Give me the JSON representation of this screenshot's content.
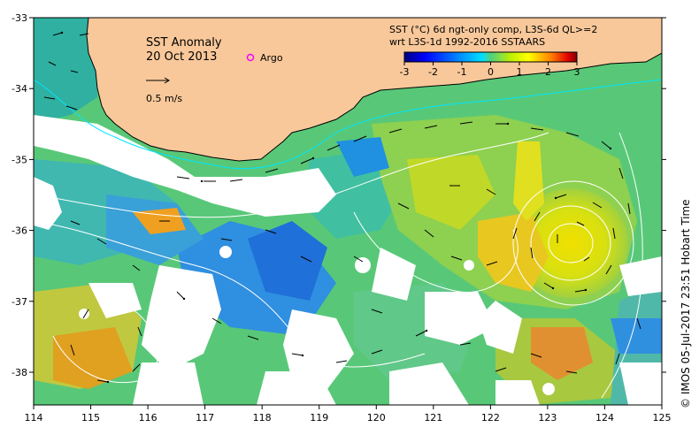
{
  "title": "SST Anomaly",
  "date": "20 Oct 2013",
  "argo_label": "Argo",
  "scale_label": "0.5 m/s",
  "legend": {
    "line1": "SST (°C) 6d ngt-only comp, L3S-6d QL>=2",
    "line2": "wrt L3S-1d 1992-2016 SSTAARS",
    "ticks": [
      "-3",
      "-2",
      "-1",
      "0",
      "1",
      "2",
      "3"
    ],
    "range": [
      -3,
      3
    ]
  },
  "credit": "© IMOS 05-Jul-2017 23:51 Hobart Time",
  "x_ticks": [
    "114",
    "115",
    "116",
    "117",
    "118",
    "119",
    "120",
    "121",
    "122",
    "123",
    "124",
    "125"
  ],
  "y_ticks": [
    "-33",
    "-34",
    "-35",
    "-36",
    "-37",
    "-38"
  ],
  "colors": {
    "land": "#f8c89a",
    "argo": "#ff00ff",
    "contour": "#ffffff",
    "coast_contour": "#00e5ff"
  },
  "colorscale": [
    "#00007f",
    "#0000ff",
    "#007fff",
    "#00ffff",
    "#7fff7f",
    "#ffff00",
    "#ff7f00",
    "#ff0000",
    "#7f0000"
  ]
}
